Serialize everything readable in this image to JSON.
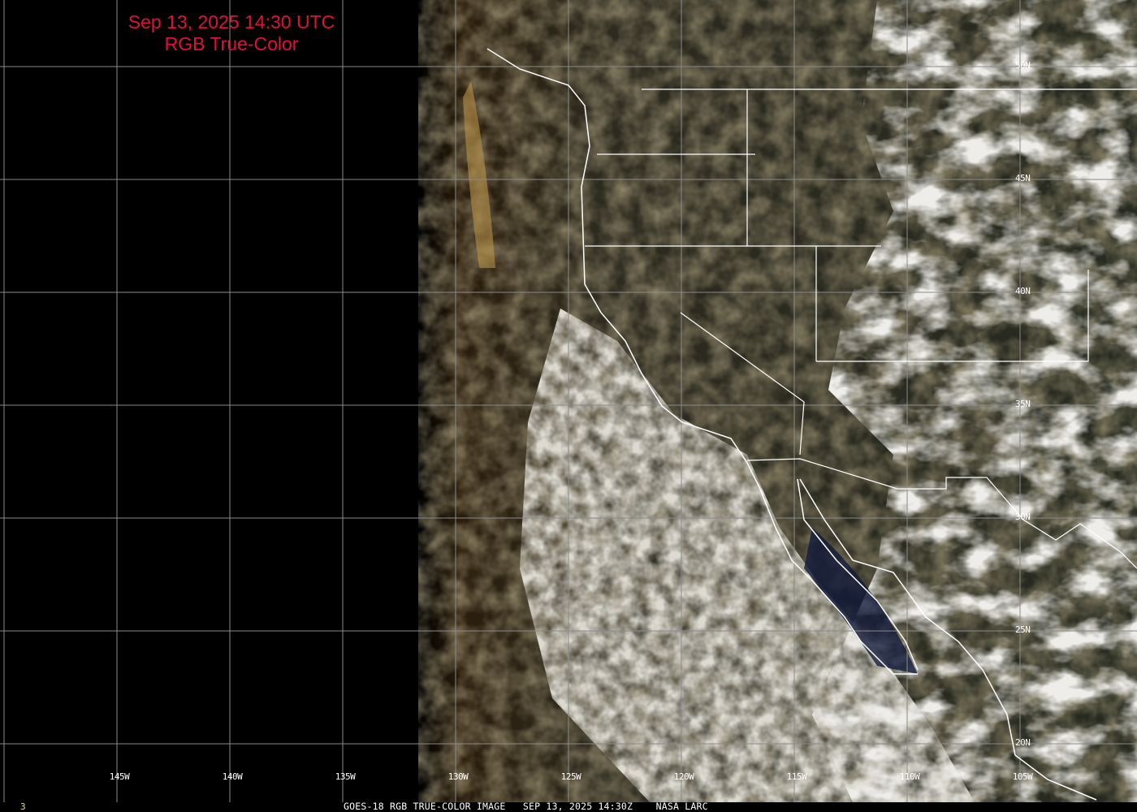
{
  "title": {
    "line1": "Sep 13, 2025 14:30 UTC",
    "line2": "RGB True-Color",
    "color": "#e0103a"
  },
  "longitude_labels": [
    "145W",
    "140W",
    "135W",
    "130W",
    "125W",
    "120W",
    "115W",
    "110W",
    "105W"
  ],
  "latitude_labels": [
    "50N",
    "45N",
    "40N",
    "35N",
    "30N",
    "25N",
    "20N"
  ],
  "footer": {
    "frame_number": "3",
    "caption": "GOES-18 RGB TRUE-COLOR IMAGE   SEP 13, 2025 14:30Z    NASA LARC"
  },
  "colors": {
    "grid": "#8a8a8a",
    "borders": "#ffffff",
    "frame_number": "#e8d87a"
  }
}
